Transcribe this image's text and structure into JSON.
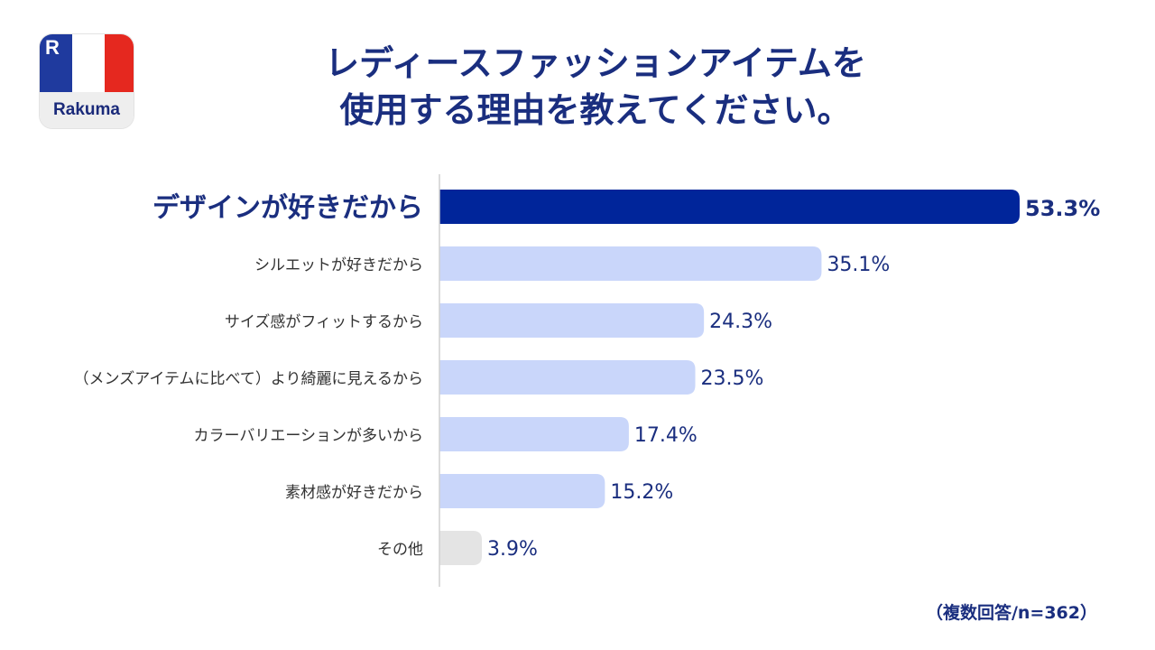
{
  "logo": {
    "mark": "R",
    "label": "Rakuma"
  },
  "title": {
    "line1": "レディースファッションアイテムを",
    "line2": "使用する理由を教えてください。"
  },
  "note": "（複数回答/n=362）",
  "colors": {
    "highlight": "#00259a",
    "bar": "#c9d6fa",
    "other": "#e4e4e4",
    "text": "#1a2e7f",
    "label": "#333333",
    "axis": "#d0d0d0"
  },
  "chart_data": {
    "type": "bar",
    "orientation": "horizontal",
    "categories": [
      "デザインが好きだから",
      "シルエットが好きだから",
      "サイズ感がフィットするから",
      "（メンズアイテムに比べて）より綺麗に見えるから",
      "カラーバリエーションが多いから",
      "素材感が好きだから",
      "その他"
    ],
    "values": [
      53.3,
      35.1,
      24.3,
      23.5,
      17.4,
      15.2,
      3.9
    ],
    "value_labels": [
      "53.3%",
      "35.1%",
      "24.3%",
      "23.5%",
      "17.4%",
      "15.2%",
      "3.9%"
    ],
    "unit": "%",
    "highlight_index": 0,
    "xlim": [
      0,
      55
    ],
    "grid": false
  }
}
